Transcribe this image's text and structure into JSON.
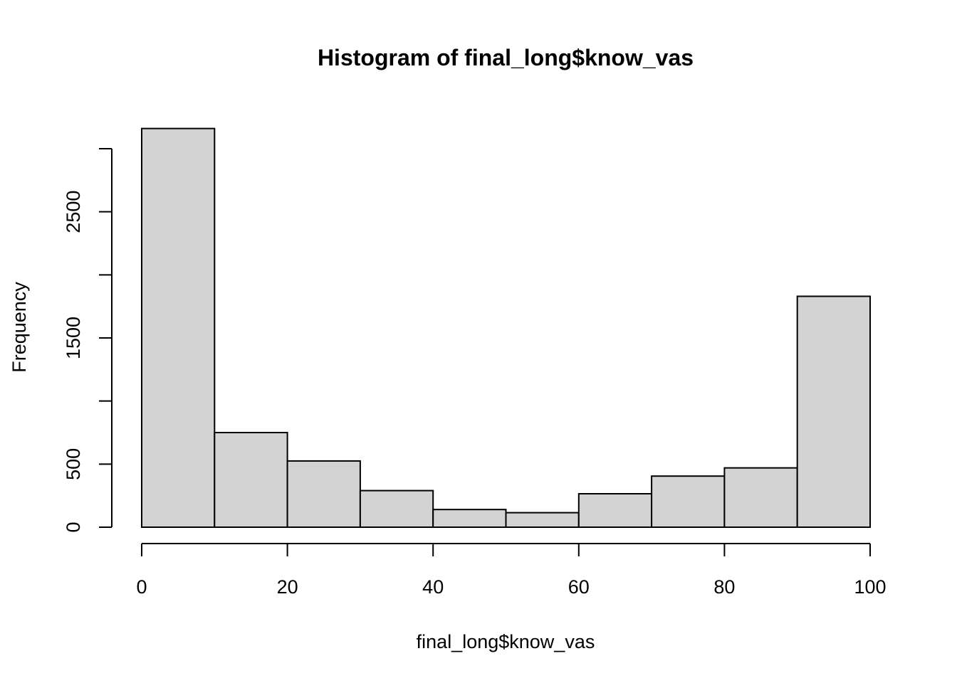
{
  "chart_data": {
    "type": "bar",
    "title": "Histogram of final_long$know_vas",
    "xlabel": "final_long$know_vas",
    "ylabel": "Frequency",
    "bins": [
      {
        "start": 0,
        "end": 10,
        "count": 3160
      },
      {
        "start": 10,
        "end": 20,
        "count": 750
      },
      {
        "start": 20,
        "end": 30,
        "count": 525
      },
      {
        "start": 30,
        "end": 40,
        "count": 290
      },
      {
        "start": 40,
        "end": 50,
        "count": 140
      },
      {
        "start": 50,
        "end": 60,
        "count": 115
      },
      {
        "start": 60,
        "end": 70,
        "count": 265
      },
      {
        "start": 70,
        "end": 80,
        "count": 405
      },
      {
        "start": 80,
        "end": 90,
        "count": 470
      },
      {
        "start": 90,
        "end": 100,
        "count": 1830
      }
    ],
    "xlim": [
      0,
      100
    ],
    "ylim": [
      0,
      3000
    ],
    "x_ticks": [
      0,
      20,
      40,
      60,
      80,
      100
    ],
    "x_tick_labels": [
      "0",
      "20",
      "40",
      "60",
      "80",
      "100"
    ],
    "y_ticks": [
      0,
      500,
      1000,
      1500,
      2000,
      2500,
      3000
    ],
    "y_tick_labels": [
      "0",
      "500",
      "",
      "1500",
      "",
      "2500",
      ""
    ],
    "colors": {
      "bar_fill": "#d3d3d3",
      "bar_stroke": "#000000"
    }
  }
}
